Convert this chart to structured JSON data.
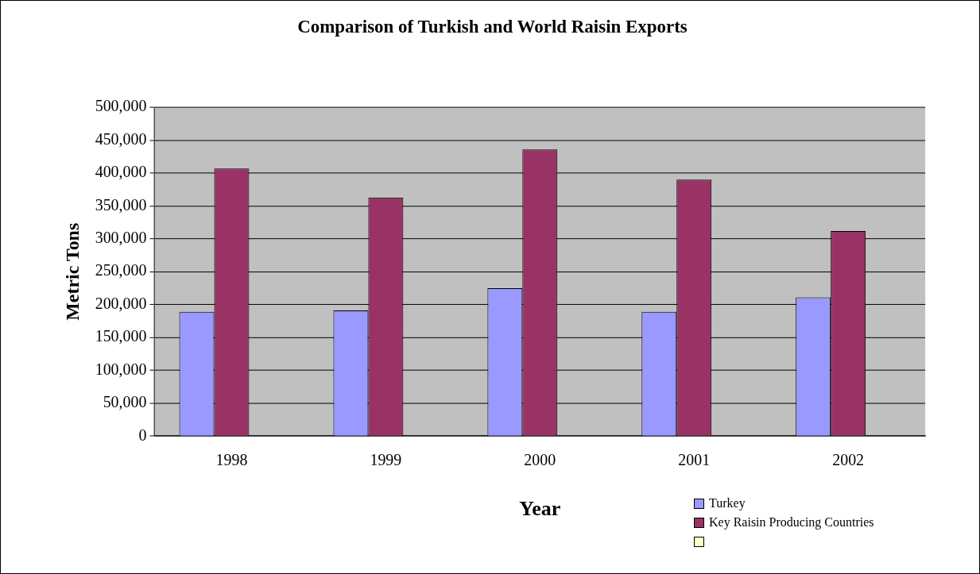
{
  "chart_data": {
    "type": "bar",
    "title": "Comparison of Turkish and World Raisin Exports",
    "xlabel": "Year",
    "ylabel": "Metric Tons",
    "categories": [
      "1998",
      "1999",
      "2000",
      "2001",
      "2002"
    ],
    "series": [
      {
        "name": "Turkey",
        "color": "#9999ff",
        "values": [
          189000,
          191000,
          225000,
          189000,
          211000
        ]
      },
      {
        "name": "Key Raisin Producing Countries",
        "color": "#993366",
        "values": [
          407000,
          363000,
          436000,
          390000,
          312000
        ]
      },
      {
        "color": "#ffffcc",
        "values": [
          null,
          null,
          null,
          null,
          null
        ]
      }
    ],
    "ylim": [
      0,
      500000
    ],
    "yticks": [
      0,
      {
        "value": 50000,
        "label": "50,000"
      },
      {
        "value": 100000,
        "label": "100,000"
      },
      {
        "value": 150000,
        "label": "150,000"
      },
      {
        "value": 200000,
        "label": "200,000"
      },
      {
        "value": 250000,
        "label": "250,000"
      },
      {
        "value": 300000,
        "label": "300,000"
      },
      {
        "value": 350000,
        "label": "350,000"
      },
      {
        "value": 400000,
        "label": "400,000"
      },
      {
        "value": 450000,
        "label": "450,000"
      },
      {
        "value": 500000,
        "label": "500,000"
      }
    ],
    "grid": "y",
    "legend": "bottom right"
  }
}
